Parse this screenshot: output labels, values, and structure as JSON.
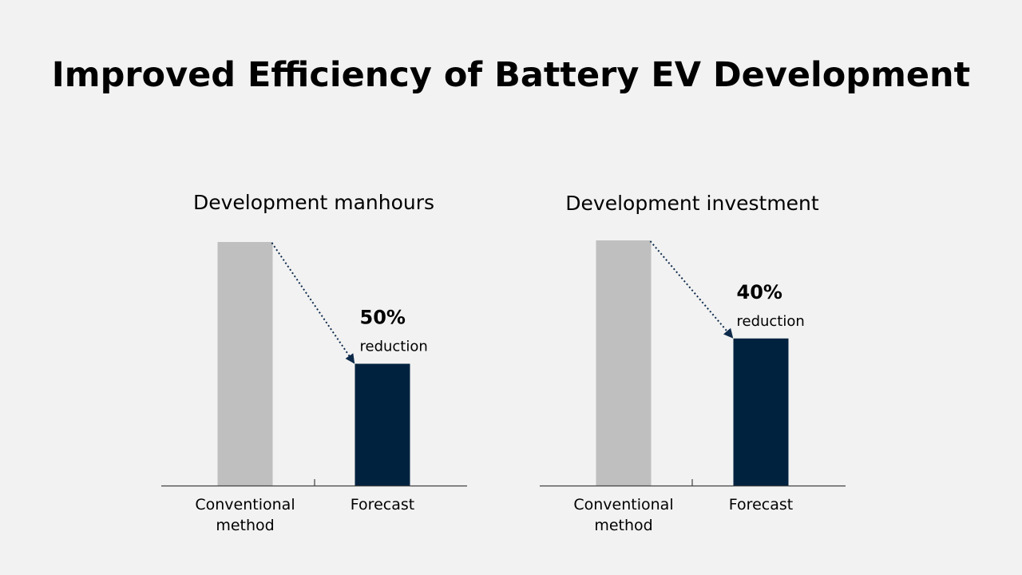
{
  "page": {
    "title": "Improved Efficiency of Battery EV Development"
  },
  "colors": {
    "background": "#f2f2f2",
    "conventional_bar": "#bfbfbf",
    "forecast_bar": "#00223f",
    "axis": "#404040",
    "arrow": "#0d2a4a"
  },
  "chart_data": [
    {
      "type": "bar",
      "title": "Development manhours",
      "categories": [
        "Conventional\nmethod",
        "Forecast"
      ],
      "category_lines": [
        [
          "Conventional",
          "method"
        ],
        [
          "Forecast"
        ]
      ],
      "values": [
        100,
        50
      ],
      "ylim": [
        0,
        100
      ],
      "bar_colors": [
        "#bfbfbf",
        "#00223f"
      ],
      "annotation": {
        "value": "50%",
        "text": "reduction"
      }
    },
    {
      "type": "bar",
      "title": "Development investment",
      "categories": [
        "Conventional\nmethod",
        "Forecast"
      ],
      "category_lines": [
        [
          "Conventional",
          "method"
        ],
        [
          "Forecast"
        ]
      ],
      "values": [
        100,
        60
      ],
      "ylim": [
        0,
        100
      ],
      "bar_colors": [
        "#bfbfbf",
        "#00223f"
      ],
      "annotation": {
        "value": "40%",
        "text": "reduction"
      }
    }
  ]
}
